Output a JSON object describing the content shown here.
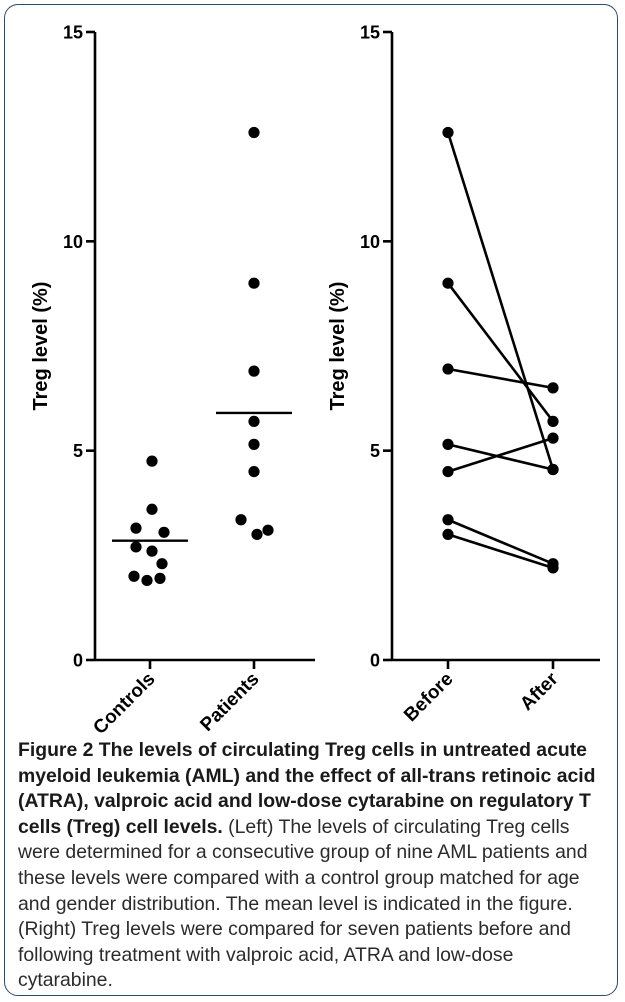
{
  "caption": {
    "title": "Figure 2 The levels of circulating Treg cells in untreated acute myeloid leukemia (AML) and the effect of all-trans retinoic acid (ATRA), valproic acid and low-dose cytarabine on regulatory T cells (Treg) cell levels.",
    "body": " (Left) The levels of circulating Treg cells were determined for a consecutive group of nine AML patients and these levels were compared with a control group matched for age and gender distribution. The mean level is indicated in the figure. (Right) Treg levels were compared for seven patients before and following treatment with valproic acid, ATRA and low-dose cytarabine."
  },
  "chart_data": [
    {
      "type": "scatter",
      "ylabel": "Treg level (%)",
      "xlabel": "",
      "ylim": [
        0,
        15
      ],
      "yticks": [
        "0",
        "5",
        "10",
        "15"
      ],
      "categories": [
        "Controls",
        "Patients"
      ],
      "series": [
        {
          "category": "Controls",
          "values": [
            4.75,
            3.6,
            3.15,
            3.05,
            2.7,
            2.6,
            2.3,
            2.0,
            1.95,
            1.9
          ],
          "mean": 2.85
        },
        {
          "category": "Patients",
          "values": [
            12.6,
            9.0,
            6.9,
            5.7,
            5.15,
            4.5,
            3.35,
            3.1,
            3.0
          ],
          "mean": 5.9
        }
      ],
      "grid": false
    },
    {
      "type": "line",
      "ylabel": "Treg level (%)",
      "xlabel": "",
      "ylim": [
        0,
        15
      ],
      "yticks": [
        "0",
        "5",
        "10",
        "15"
      ],
      "categories": [
        "Before",
        "After"
      ],
      "pairs": [
        [
          12.6,
          4.55
        ],
        [
          9.0,
          5.7
        ],
        [
          6.95,
          6.5
        ],
        [
          5.15,
          4.55
        ],
        [
          4.5,
          5.3
        ],
        [
          3.35,
          2.3
        ],
        [
          3.0,
          2.2
        ]
      ],
      "grid": false
    }
  ],
  "colors": {
    "frame": "#2e4a6b",
    "ink": "#000000"
  }
}
